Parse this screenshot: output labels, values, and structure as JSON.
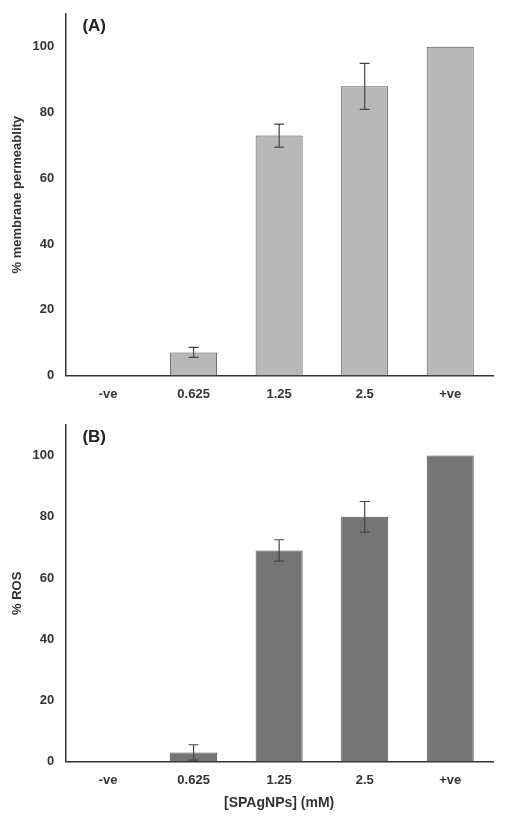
{
  "chart_data": [
    {
      "type": "bar",
      "annotation": "(A)",
      "categories": [
        "-ve",
        "0.625",
        "1.25",
        "2.5",
        "+ve"
      ],
      "values": [
        0,
        7,
        73,
        88,
        100
      ],
      "errors": [
        0,
        1.5,
        3.5,
        7,
        0
      ],
      "ylabel": "% membrane permeablity",
      "color": "#b8b8b8",
      "ylim": [
        0,
        110
      ],
      "yticks": [
        0,
        20,
        40,
        60,
        80,
        100
      ],
      "grid": false
    },
    {
      "type": "bar",
      "annotation": "(B)",
      "categories": [
        "-ve",
        "0.625",
        "1.25",
        "2.5",
        "+ve"
      ],
      "values": [
        0,
        3,
        69,
        80,
        100
      ],
      "errors": [
        0,
        2.5,
        3.5,
        5,
        0
      ],
      "ylabel": "% ROS",
      "xlabel": "[SPAgNPs] (mM)",
      "color": "#757575",
      "ylim": [
        0,
        110
      ],
      "yticks": [
        0,
        20,
        40,
        60,
        80,
        100
      ],
      "grid": false
    }
  ]
}
